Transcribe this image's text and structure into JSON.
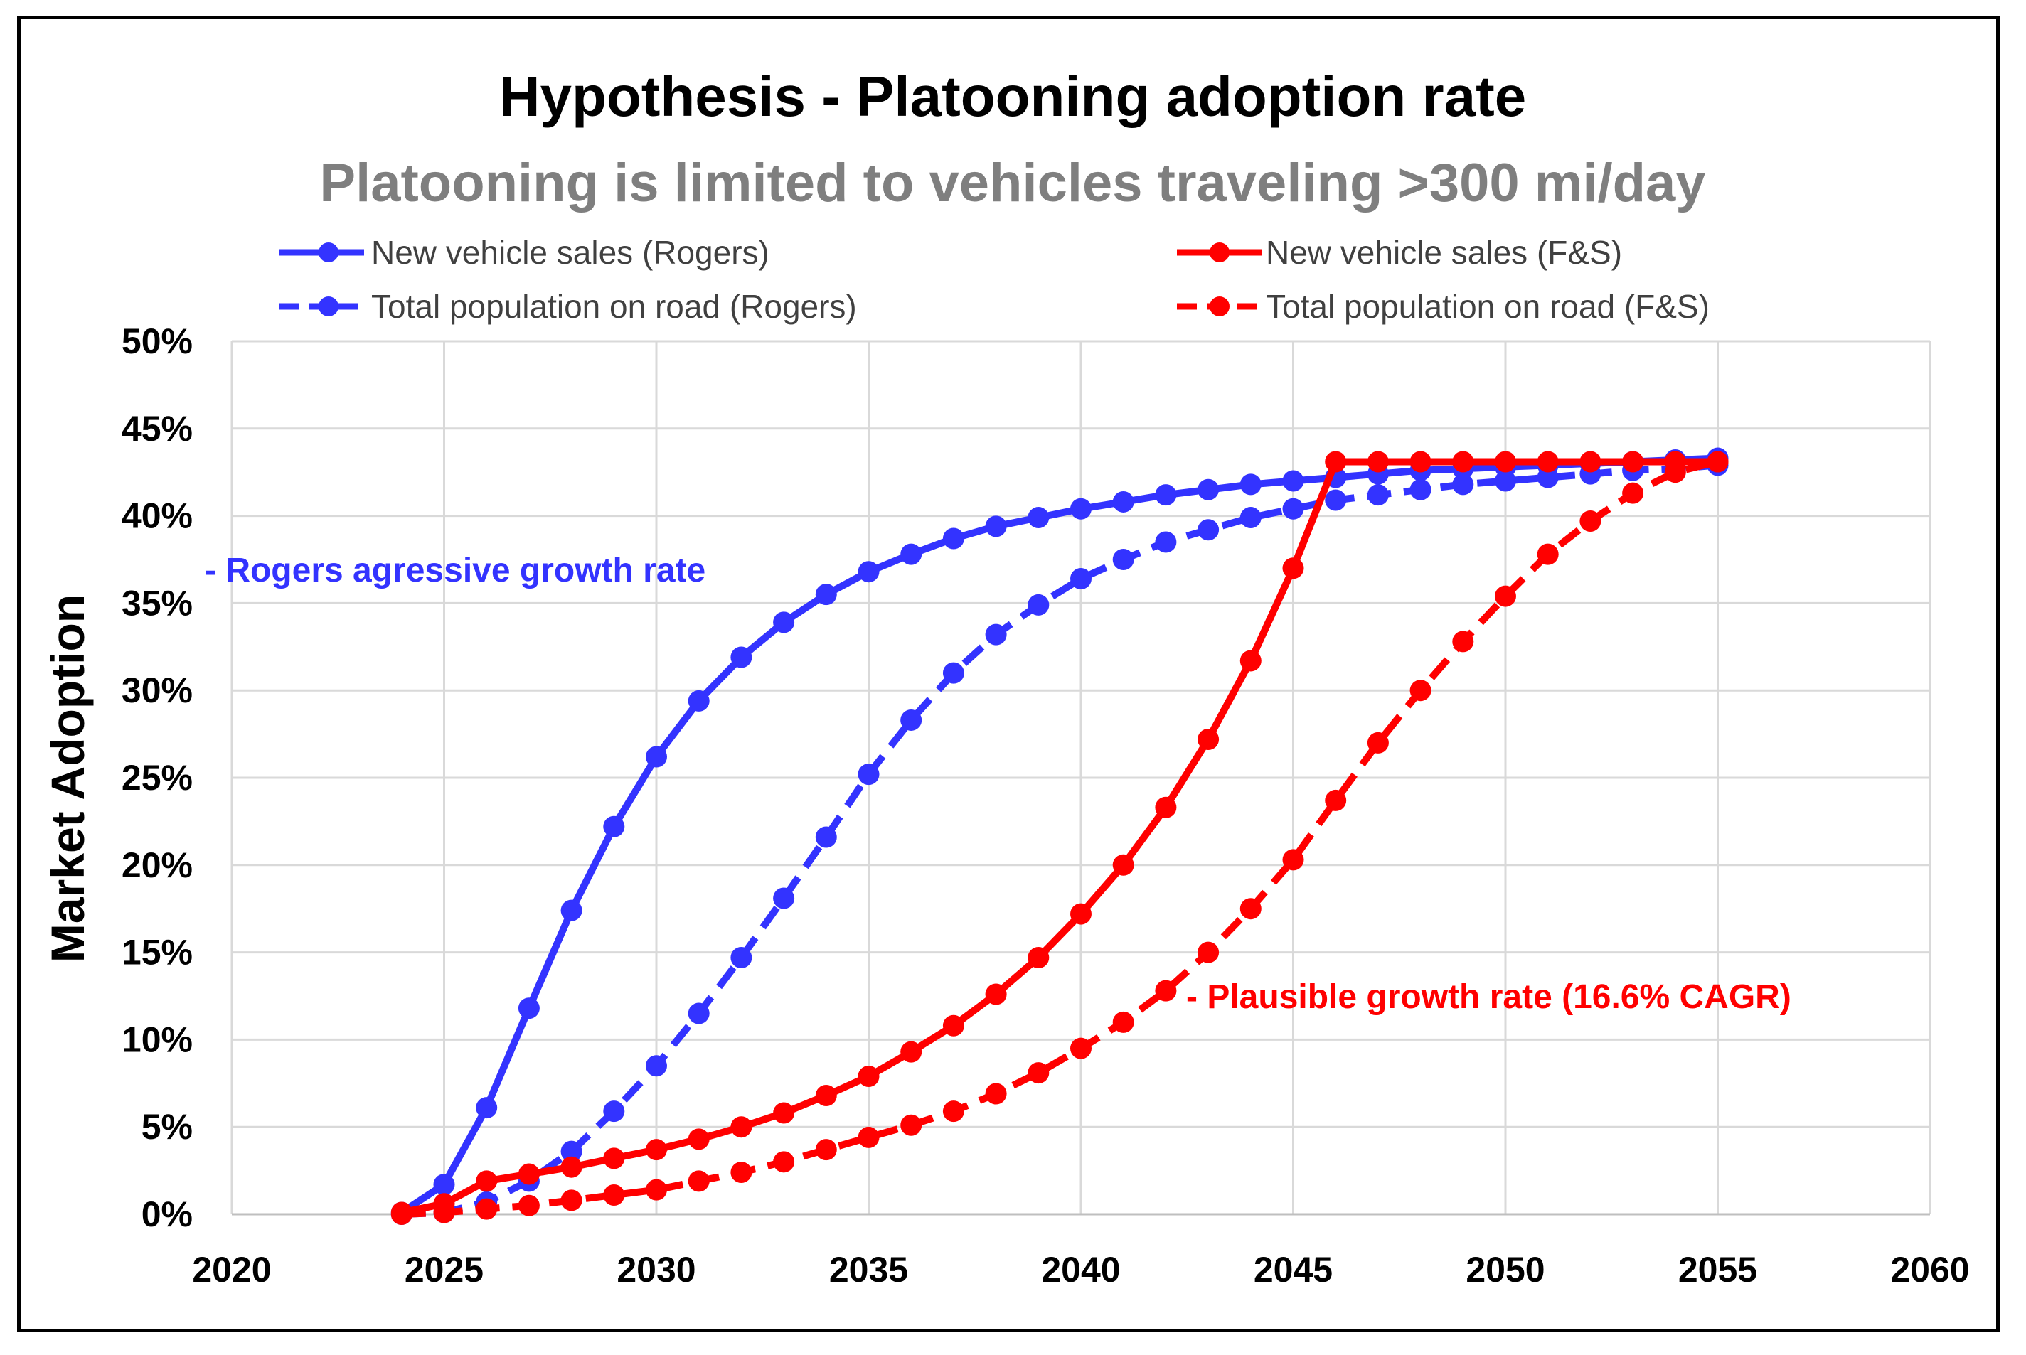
{
  "chart_data": {
    "type": "line",
    "title": "Hypothesis - Platooning adoption rate",
    "subtitle": "Platooning is limited to vehicles traveling >300 mi/day",
    "xlabel": "",
    "ylabel": "Market Adoption",
    "xlim": [
      2020,
      2060
    ],
    "ylim": [
      0,
      50
    ],
    "xticks": [
      2020,
      2025,
      2030,
      2035,
      2040,
      2045,
      2050,
      2055,
      2060
    ],
    "xtick_labels": [
      "2020",
      "2025",
      "2030",
      "2035",
      "2040",
      "2045",
      "2050",
      "2055",
      "2060"
    ],
    "yticks": [
      0,
      5,
      10,
      15,
      20,
      25,
      30,
      35,
      40,
      45,
      50
    ],
    "ytick_labels": [
      "0%",
      "5%",
      "10%",
      "15%",
      "20%",
      "25%",
      "30%",
      "35%",
      "40%",
      "45%",
      "50%"
    ],
    "grid": true,
    "legend_position": "top",
    "series": [
      {
        "name": "New vehicle sales (Rogers)",
        "color": "#3333ff",
        "style": "solid",
        "x": [
          2024,
          2025,
          2026,
          2027,
          2028,
          2029,
          2030,
          2031,
          2032,
          2033,
          2034,
          2035,
          2036,
          2037,
          2038,
          2039,
          2040,
          2041,
          2042,
          2043,
          2044,
          2045,
          2046,
          2047,
          2048,
          2049,
          2050,
          2051,
          2052,
          2053,
          2054,
          2055
        ],
        "values": [
          0.1,
          1.7,
          6.1,
          11.8,
          17.4,
          22.2,
          26.2,
          29.4,
          31.9,
          33.9,
          35.5,
          36.8,
          37.8,
          38.7,
          39.4,
          39.9,
          40.4,
          40.8,
          41.2,
          41.5,
          41.8,
          42.0,
          42.2,
          42.4,
          42.6,
          42.7,
          42.8,
          42.9,
          43.0,
          43.1,
          43.2,
          43.3
        ]
      },
      {
        "name": "Total population on road (Rogers)",
        "color": "#3333ff",
        "style": "dashed",
        "x": [
          2024,
          2025,
          2026,
          2027,
          2028,
          2029,
          2030,
          2031,
          2032,
          2033,
          2034,
          2035,
          2036,
          2037,
          2038,
          2039,
          2040,
          2041,
          2042,
          2043,
          2044,
          2045,
          2046,
          2047,
          2048,
          2049,
          2050,
          2051,
          2052,
          2053,
          2054,
          2055
        ],
        "values": [
          0.0,
          0.1,
          0.7,
          1.9,
          3.6,
          5.9,
          8.5,
          11.5,
          14.7,
          18.1,
          21.6,
          25.2,
          28.3,
          31.0,
          33.2,
          34.9,
          36.4,
          37.5,
          38.5,
          39.2,
          39.9,
          40.4,
          40.9,
          41.2,
          41.5,
          41.8,
          42.0,
          42.2,
          42.4,
          42.6,
          42.7,
          42.9
        ]
      },
      {
        "name": "New vehicle sales (F&S)",
        "color": "#ff0000",
        "style": "solid",
        "x": [
          2024,
          2025,
          2026,
          2027,
          2028,
          2029,
          2030,
          2031,
          2032,
          2033,
          2034,
          2035,
          2036,
          2037,
          2038,
          2039,
          2040,
          2041,
          2042,
          2043,
          2044,
          2045,
          2046,
          2047,
          2048,
          2049,
          2050,
          2051,
          2052,
          2053,
          2054,
          2055
        ],
        "values": [
          0.1,
          0.6,
          1.9,
          2.3,
          2.7,
          3.2,
          3.7,
          4.3,
          5.0,
          5.8,
          6.8,
          7.9,
          9.3,
          10.8,
          12.6,
          14.7,
          17.2,
          20.0,
          23.3,
          27.2,
          31.7,
          37.0,
          43.1,
          43.1,
          43.1,
          43.1,
          43.1,
          43.1,
          43.1,
          43.1,
          43.1,
          43.1
        ]
      },
      {
        "name": "Total population on road (F&S)",
        "color": "#ff0000",
        "style": "dashed",
        "x": [
          2024,
          2025,
          2026,
          2027,
          2028,
          2029,
          2030,
          2031,
          2032,
          2033,
          2034,
          2035,
          2036,
          2037,
          2038,
          2039,
          2040,
          2041,
          2042,
          2043,
          2044,
          2045,
          2046,
          2047,
          2048,
          2049,
          2050,
          2051,
          2052,
          2053,
          2054,
          2055
        ],
        "values": [
          0.0,
          0.1,
          0.3,
          0.5,
          0.8,
          1.1,
          1.4,
          1.9,
          2.4,
          3.0,
          3.7,
          4.4,
          5.1,
          5.9,
          6.9,
          8.1,
          9.5,
          11.0,
          12.8,
          15.0,
          17.5,
          20.3,
          23.7,
          27.0,
          30.0,
          32.8,
          35.4,
          37.8,
          39.7,
          41.3,
          42.5,
          43.1
        ]
      }
    ],
    "annotations": [
      {
        "text": "- Rogers agressive growth rate",
        "color": "#3333ff"
      },
      {
        "text": "- Plausible growth rate (16.6% CAGR)",
        "color": "#ff0000"
      }
    ]
  }
}
